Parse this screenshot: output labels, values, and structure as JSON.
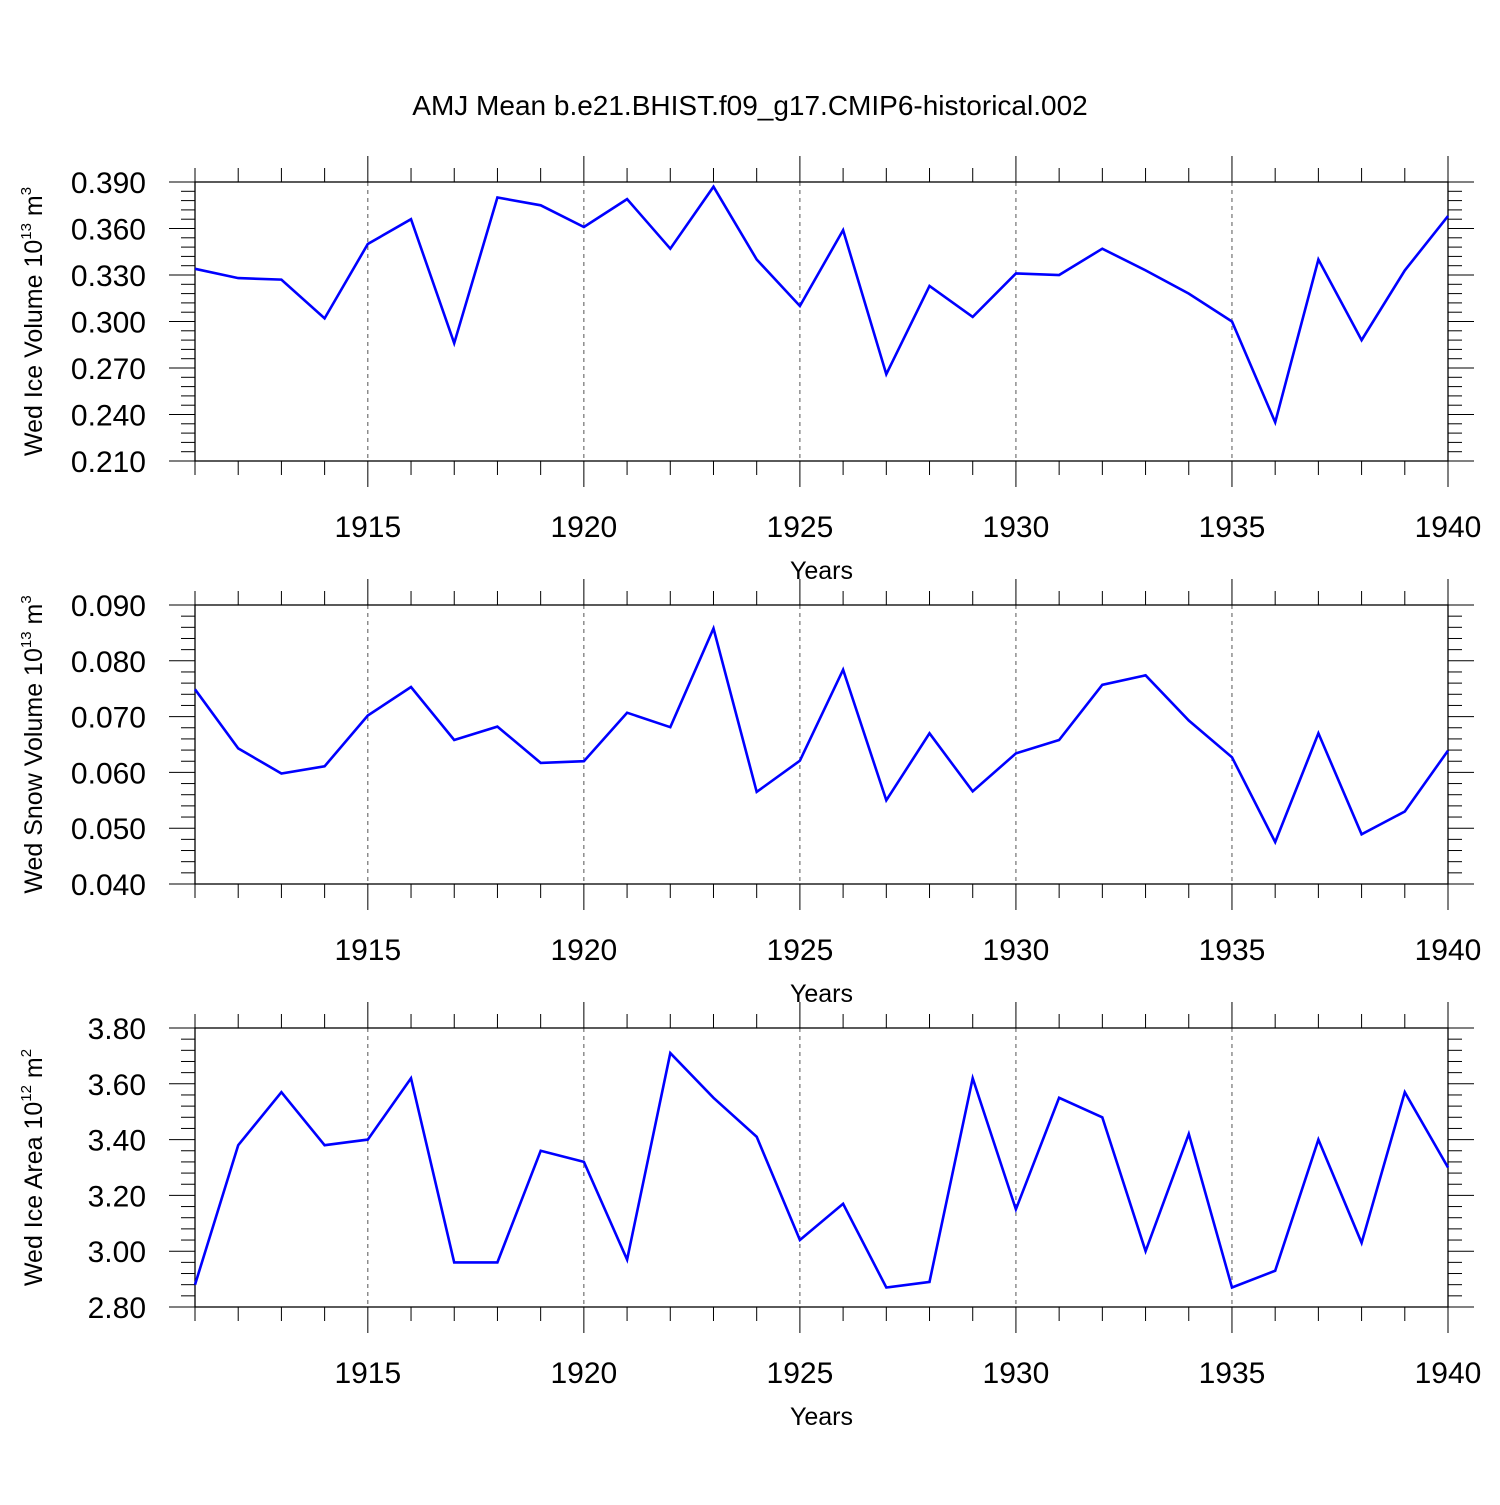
{
  "figure": {
    "title": "AMJ Mean b.e21.BHIST.f09_g17.CMIP6-historical.002",
    "line_color": "#0000ff"
  },
  "chart_data": [
    {
      "type": "line",
      "title": "",
      "xlabel": "Years",
      "ylabel_prefix": "Wed Ice Volume 10",
      "ylabel_exp": "13",
      "ylabel_unit": " m",
      "ylabel_unit_exp": "3",
      "xlim": [
        1911,
        1940
      ],
      "ylim": [
        0.21,
        0.39
      ],
      "yticks": [
        "0.210",
        "0.240",
        "0.270",
        "0.300",
        "0.330",
        "0.360",
        "0.390"
      ],
      "xticks": [
        "1915",
        "1920",
        "1925",
        "1930",
        "1935",
        "1940"
      ],
      "grid": "vertical dashed at major x ticks",
      "x": [
        1911,
        1912,
        1913,
        1914,
        1915,
        1916,
        1917,
        1918,
        1919,
        1920,
        1921,
        1922,
        1923,
        1924,
        1925,
        1926,
        1927,
        1928,
        1929,
        1930,
        1931,
        1932,
        1933,
        1934,
        1935,
        1936,
        1937,
        1938,
        1939,
        1940
      ],
      "series": [
        {
          "values": [
            0.334,
            0.328,
            0.327,
            0.302,
            0.35,
            0.366,
            0.286,
            0.38,
            0.375,
            0.361,
            0.379,
            0.347,
            0.387,
            0.34,
            0.31,
            0.359,
            0.266,
            0.323,
            0.303,
            0.331,
            0.33,
            0.347,
            0.333,
            0.318,
            0.3,
            0.235,
            0.34,
            0.288,
            0.333,
            0.368
          ]
        }
      ]
    },
    {
      "type": "line",
      "title": "",
      "xlabel": "Years",
      "ylabel_prefix": "Wed Snow Volume 10",
      "ylabel_exp": "13",
      "ylabel_unit": " m",
      "ylabel_unit_exp": "3",
      "xlim": [
        1911,
        1940
      ],
      "ylim": [
        0.04,
        0.09
      ],
      "yticks": [
        "0.040",
        "0.050",
        "0.060",
        "0.070",
        "0.080",
        "0.090"
      ],
      "xticks": [
        "1915",
        "1920",
        "1925",
        "1930",
        "1935",
        "1940"
      ],
      "grid": "vertical dashed at major x ticks",
      "x": [
        1911,
        1912,
        1913,
        1914,
        1915,
        1916,
        1917,
        1918,
        1919,
        1920,
        1921,
        1922,
        1923,
        1924,
        1925,
        1926,
        1927,
        1928,
        1929,
        1930,
        1931,
        1932,
        1933,
        1934,
        1935,
        1936,
        1937,
        1938,
        1939,
        1940
      ],
      "series": [
        {
          "values": [
            0.0749,
            0.0643,
            0.0598,
            0.0611,
            0.0702,
            0.0753,
            0.0658,
            0.0682,
            0.0617,
            0.062,
            0.0707,
            0.0681,
            0.0858,
            0.0565,
            0.0621,
            0.0784,
            0.055,
            0.067,
            0.0566,
            0.0634,
            0.0658,
            0.0757,
            0.0774,
            0.0693,
            0.0627,
            0.0475,
            0.067,
            0.0489,
            0.053,
            0.0639
          ]
        }
      ]
    },
    {
      "type": "line",
      "title": "",
      "xlabel": "Years",
      "ylabel_prefix": "Wed Ice Area 10",
      "ylabel_exp": "12",
      "ylabel_unit": " m",
      "ylabel_unit_exp": "2",
      "xlim": [
        1911,
        1940
      ],
      "ylim": [
        2.8,
        3.8
      ],
      "yticks": [
        "2.80",
        "3.00",
        "3.20",
        "3.40",
        "3.60",
        "3.80"
      ],
      "xticks": [
        "1915",
        "1920",
        "1925",
        "1930",
        "1935",
        "1940"
      ],
      "grid": "vertical dashed at major x ticks",
      "x": [
        1911,
        1912,
        1913,
        1914,
        1915,
        1916,
        1917,
        1918,
        1919,
        1920,
        1921,
        1922,
        1923,
        1924,
        1925,
        1926,
        1927,
        1928,
        1929,
        1930,
        1931,
        1932,
        1933,
        1934,
        1935,
        1936,
        1937,
        1938,
        1939,
        1940
      ],
      "series": [
        {
          "values": [
            2.88,
            3.38,
            3.57,
            3.38,
            3.4,
            3.62,
            2.96,
            2.96,
            3.36,
            3.32,
            2.97,
            3.71,
            3.55,
            3.41,
            3.04,
            3.17,
            2.87,
            2.89,
            3.62,
            3.15,
            3.55,
            3.48,
            3.0,
            3.42,
            2.87,
            2.93,
            3.4,
            3.03,
            3.57,
            3.3
          ]
        }
      ]
    }
  ]
}
